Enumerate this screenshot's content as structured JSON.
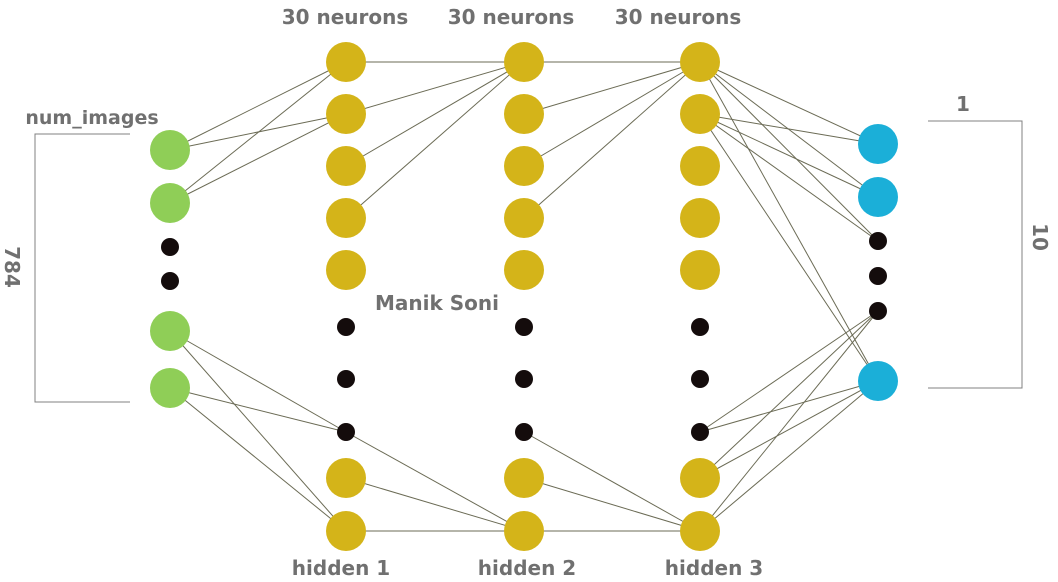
{
  "header": {
    "top_labels": [
      "30 neurons",
      "30 neurons",
      "30 neurons"
    ],
    "bottom_labels": [
      "hidden 1",
      "hidden 2",
      "hidden 3"
    ]
  },
  "input": {
    "label": "num_images",
    "size_label": "784"
  },
  "output": {
    "label": "1",
    "size_label": "10"
  },
  "watermark": "Manik Soni",
  "colors": {
    "input_node": "#8fce57",
    "hidden_node": "#d4b419",
    "output_node": "#1bafd8",
    "dot": "#140c0c",
    "edge": "#6b6b55",
    "label": "#707070"
  }
}
